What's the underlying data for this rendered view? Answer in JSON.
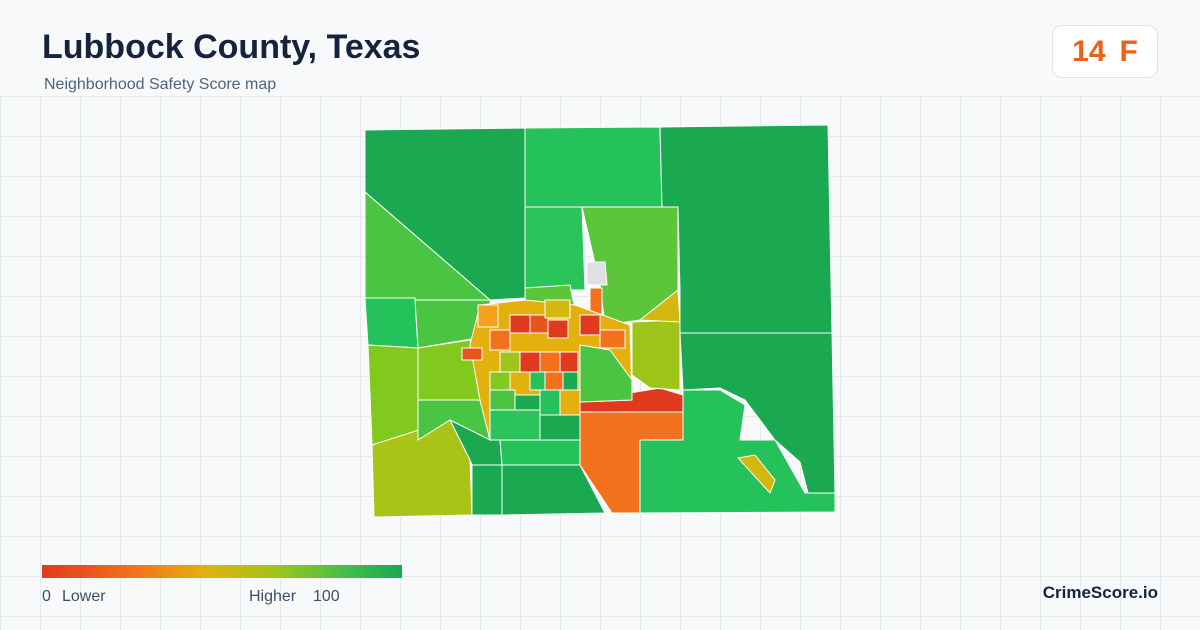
{
  "header": {
    "title": "Lubbock County, Texas",
    "subtitle": "Neighborhood Safety Score map"
  },
  "rating": {
    "score": 14,
    "grade": "F"
  },
  "legend": {
    "min": 0,
    "min_label": "Lower",
    "max_label": "Higher",
    "max": 100
  },
  "footer": {
    "brand": "CrimeScore.io"
  }
}
